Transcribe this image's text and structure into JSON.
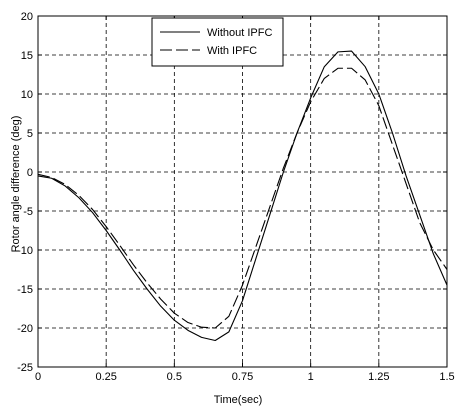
{
  "chart_data": {
    "type": "line",
    "title": "",
    "xlabel": "Time(sec)",
    "ylabel": "Rotor angle difference (deg)",
    "xlim": [
      0,
      1.5
    ],
    "ylim": [
      -25,
      20
    ],
    "grid": true,
    "legend_position": "top-center",
    "x_ticks": [
      0,
      0.25,
      0.5,
      0.75,
      1,
      1.25,
      1.5
    ],
    "x_tick_labels": [
      "0",
      "0.25",
      "0.5",
      "0.75",
      "1",
      "1.25",
      "1.5"
    ],
    "y_ticks": [
      -25,
      -20,
      -15,
      -10,
      -5,
      0,
      5,
      10,
      15,
      20
    ],
    "y_tick_labels": [
      "-25",
      "-20",
      "-15",
      "-10",
      "-5",
      "0",
      "5",
      "10",
      "15",
      "20"
    ],
    "series": [
      {
        "name": "Without IPFC",
        "style": "solid",
        "color": "#000000",
        "points": [
          [
            0,
            -0.5
          ],
          [
            0.05,
            -0.8
          ],
          [
            0.1,
            -1.8
          ],
          [
            0.15,
            -3.3
          ],
          [
            0.2,
            -5.2
          ],
          [
            0.25,
            -7.5
          ],
          [
            0.3,
            -10.0
          ],
          [
            0.35,
            -12.6
          ],
          [
            0.4,
            -15.0
          ],
          [
            0.45,
            -17.2
          ],
          [
            0.5,
            -19.0
          ],
          [
            0.55,
            -20.3
          ],
          [
            0.6,
            -21.2
          ],
          [
            0.65,
            -21.6
          ],
          [
            0.7,
            -20.5
          ],
          [
            0.75,
            -16.5
          ],
          [
            0.8,
            -11.0
          ],
          [
            0.85,
            -5.5
          ],
          [
            0.9,
            0.0
          ],
          [
            0.95,
            5.0
          ],
          [
            1.0,
            9.5
          ],
          [
            1.05,
            13.5
          ],
          [
            1.1,
            15.4
          ],
          [
            1.15,
            15.5
          ],
          [
            1.2,
            13.5
          ],
          [
            1.25,
            10.0
          ],
          [
            1.3,
            5.0
          ],
          [
            1.35,
            -0.5
          ],
          [
            1.4,
            -5.5
          ],
          [
            1.45,
            -10.5
          ],
          [
            1.5,
            -14.5
          ]
        ]
      },
      {
        "name": "With IPFC",
        "style": "dashed",
        "color": "#000000",
        "points": [
          [
            0,
            -0.3
          ],
          [
            0.05,
            -0.7
          ],
          [
            0.1,
            -1.6
          ],
          [
            0.15,
            -3.0
          ],
          [
            0.2,
            -4.8
          ],
          [
            0.25,
            -7.0
          ],
          [
            0.3,
            -9.4
          ],
          [
            0.35,
            -11.9
          ],
          [
            0.4,
            -14.2
          ],
          [
            0.45,
            -16.3
          ],
          [
            0.5,
            -18.1
          ],
          [
            0.55,
            -19.3
          ],
          [
            0.6,
            -19.9
          ],
          [
            0.65,
            -20.0
          ],
          [
            0.7,
            -18.5
          ],
          [
            0.75,
            -14.5
          ],
          [
            0.8,
            -9.5
          ],
          [
            0.85,
            -4.5
          ],
          [
            0.9,
            0.5
          ],
          [
            0.95,
            5.0
          ],
          [
            1.0,
            9.0
          ],
          [
            1.05,
            12.0
          ],
          [
            1.1,
            13.3
          ],
          [
            1.15,
            13.3
          ],
          [
            1.2,
            11.8
          ],
          [
            1.25,
            8.5
          ],
          [
            1.3,
            3.5
          ],
          [
            1.35,
            -1.5
          ],
          [
            1.4,
            -6.5
          ],
          [
            1.45,
            -10.0
          ],
          [
            1.5,
            -12.5
          ]
        ]
      }
    ]
  }
}
